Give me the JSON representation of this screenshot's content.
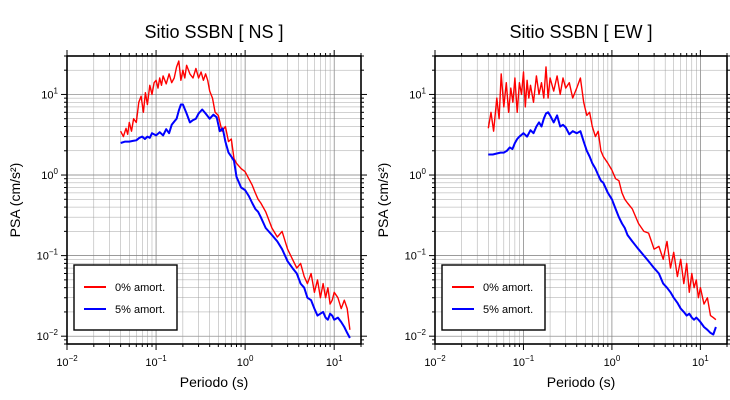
{
  "chart_data": [
    {
      "type": "line",
      "title": "Sitio SSBN [ NS ]",
      "xlabel": "Periodo (s)",
      "ylabel": "PSA (cm/s²)",
      "xscale": "log",
      "yscale": "log",
      "xlim": [
        0.01,
        20
      ],
      "ylim": [
        0.008,
        30
      ],
      "grid": true,
      "legend_position": "bottom-left",
      "xticks": [
        {
          "value": 0.01,
          "base": "10",
          "exp": "−2"
        },
        {
          "value": 0.1,
          "base": "10",
          "exp": "−1"
        },
        {
          "value": 1,
          "base": "10",
          "exp": "0"
        },
        {
          "value": 10,
          "base": "10",
          "exp": "1"
        }
      ],
      "yticks": [
        {
          "value": 0.01,
          "base": "10",
          "exp": "−2"
        },
        {
          "value": 0.1,
          "base": "10",
          "exp": "−1"
        },
        {
          "value": 1,
          "base": "10",
          "exp": "0"
        },
        {
          "value": 10,
          "base": "10",
          "exp": "1"
        }
      ],
      "series": [
        {
          "name": "0% amort.",
          "color": "#ff0000",
          "x": [
            0.04,
            0.043,
            0.046,
            0.048,
            0.05,
            0.053,
            0.056,
            0.06,
            0.064,
            0.068,
            0.072,
            0.076,
            0.08,
            0.085,
            0.09,
            0.095,
            0.1,
            0.105,
            0.11,
            0.115,
            0.12,
            0.13,
            0.14,
            0.15,
            0.16,
            0.17,
            0.18,
            0.19,
            0.2,
            0.21,
            0.22,
            0.24,
            0.26,
            0.28,
            0.3,
            0.32,
            0.34,
            0.36,
            0.38,
            0.4,
            0.43,
            0.46,
            0.5,
            0.55,
            0.6,
            0.65,
            0.7,
            0.75,
            0.8,
            0.9,
            1.0,
            1.1,
            1.2,
            1.3,
            1.4,
            1.5,
            1.7,
            2.0,
            2.3,
            2.6,
            3.0,
            3.4,
            3.8,
            4.2,
            4.6,
            5.0,
            5.5,
            6.0,
            6.5,
            7.0,
            7.5,
            8.0,
            8.5,
            9.0,
            9.5,
            10,
            11,
            12,
            13,
            14,
            15
          ],
          "y": [
            3.5,
            3.0,
            3.8,
            3.2,
            4.5,
            3.5,
            5.0,
            4.5,
            8.0,
            9.5,
            6.0,
            10.5,
            7.5,
            13.0,
            10.0,
            14.0,
            15.0,
            12.0,
            16.0,
            13.0,
            17.0,
            13.5,
            18.0,
            14.0,
            16.0,
            22.0,
            26.0,
            15.0,
            20.0,
            16.0,
            23.0,
            18.0,
            16.0,
            21.0,
            16.0,
            19.0,
            15.0,
            18.0,
            15.0,
            11.0,
            9.0,
            6.0,
            5.5,
            3.5,
            4.0,
            2.6,
            2.8,
            1.6,
            1.4,
            1.2,
            1.1,
            0.9,
            0.75,
            0.6,
            0.5,
            0.45,
            0.35,
            0.22,
            0.17,
            0.2,
            0.12,
            0.09,
            0.07,
            0.08,
            0.055,
            0.045,
            0.06,
            0.035,
            0.05,
            0.03,
            0.045,
            0.03,
            0.04,
            0.025,
            0.028,
            0.035,
            0.03,
            0.022,
            0.028,
            0.022,
            0.012
          ]
        },
        {
          "name": "5% amort.",
          "color": "#0000ff",
          "x": [
            0.04,
            0.045,
            0.05,
            0.055,
            0.06,
            0.065,
            0.07,
            0.075,
            0.08,
            0.085,
            0.09,
            0.1,
            0.11,
            0.12,
            0.13,
            0.14,
            0.15,
            0.16,
            0.17,
            0.18,
            0.19,
            0.2,
            0.22,
            0.24,
            0.26,
            0.28,
            0.3,
            0.33,
            0.36,
            0.4,
            0.44,
            0.48,
            0.52,
            0.56,
            0.6,
            0.65,
            0.7,
            0.75,
            0.8,
            0.9,
            1.0,
            1.1,
            1.2,
            1.3,
            1.4,
            1.5,
            1.7,
            2.0,
            2.3,
            2.6,
            3.0,
            3.4,
            3.8,
            4.2,
            4.6,
            5.0,
            5.5,
            6.0,
            6.5,
            7.0,
            7.5,
            8.0,
            8.5,
            9.0,
            9.5,
            10,
            11,
            12,
            13,
            14,
            15
          ],
          "y": [
            2.5,
            2.6,
            2.6,
            2.65,
            2.7,
            2.9,
            3.0,
            2.8,
            3.0,
            2.9,
            3.3,
            3.1,
            3.4,
            3.1,
            3.7,
            3.3,
            4.2,
            4.6,
            5.0,
            6.3,
            7.5,
            7.5,
            5.8,
            4.5,
            4.8,
            5.0,
            5.8,
            6.5,
            5.8,
            5.0,
            5.6,
            5.2,
            3.5,
            3.8,
            2.6,
            1.9,
            1.7,
            1.5,
            0.95,
            0.7,
            0.65,
            0.55,
            0.45,
            0.38,
            0.35,
            0.3,
            0.22,
            0.18,
            0.15,
            0.12,
            0.085,
            0.07,
            0.06,
            0.045,
            0.04,
            0.03,
            0.028,
            0.022,
            0.018,
            0.019,
            0.02,
            0.017,
            0.016,
            0.019,
            0.018,
            0.016,
            0.017,
            0.015,
            0.013,
            0.011,
            0.0095
          ]
        }
      ],
      "legend": [
        {
          "label": "0% amort.",
          "color": "#ff0000"
        },
        {
          "label": "5% amort.",
          "color": "#0000ff"
        }
      ]
    },
    {
      "type": "line",
      "title": "Sitio SSBN [ EW ]",
      "xlabel": "Periodo (s)",
      "ylabel": "PSA (cm/s²)",
      "xscale": "log",
      "yscale": "log",
      "xlim": [
        0.01,
        20
      ],
      "ylim": [
        0.008,
        30
      ],
      "grid": true,
      "legend_position": "bottom-left",
      "xticks": [
        {
          "value": 0.01,
          "base": "10",
          "exp": "−2"
        },
        {
          "value": 0.1,
          "base": "10",
          "exp": "−1"
        },
        {
          "value": 1,
          "base": "10",
          "exp": "0"
        },
        {
          "value": 10,
          "base": "10",
          "exp": "1"
        }
      ],
      "yticks": [
        {
          "value": 0.01,
          "base": "10",
          "exp": "−2"
        },
        {
          "value": 0.1,
          "base": "10",
          "exp": "−1"
        },
        {
          "value": 1,
          "base": "10",
          "exp": "0"
        },
        {
          "value": 10,
          "base": "10",
          "exp": "1"
        }
      ],
      "series": [
        {
          "name": "0% amort.",
          "color": "#ff0000",
          "x": [
            0.04,
            0.043,
            0.046,
            0.05,
            0.053,
            0.056,
            0.06,
            0.064,
            0.068,
            0.072,
            0.076,
            0.08,
            0.085,
            0.09,
            0.095,
            0.1,
            0.105,
            0.11,
            0.115,
            0.12,
            0.13,
            0.14,
            0.15,
            0.16,
            0.17,
            0.18,
            0.19,
            0.2,
            0.22,
            0.24,
            0.26,
            0.28,
            0.3,
            0.33,
            0.36,
            0.4,
            0.44,
            0.48,
            0.52,
            0.56,
            0.6,
            0.65,
            0.7,
            0.75,
            0.8,
            0.9,
            1.0,
            1.1,
            1.2,
            1.3,
            1.4,
            1.5,
            1.7,
            2.0,
            2.3,
            2.6,
            3.0,
            3.4,
            3.8,
            4.2,
            4.6,
            5.0,
            5.5,
            6.0,
            6.5,
            7.0,
            7.5,
            8.0,
            8.5,
            9.0,
            9.5,
            10,
            11,
            12,
            13,
            14,
            15
          ],
          "y": [
            3.8,
            6.0,
            3.5,
            9.0,
            5.0,
            18.0,
            7.0,
            14.0,
            6.0,
            12.0,
            8.0,
            16.0,
            6.0,
            14.0,
            10.0,
            19.0,
            7.0,
            15.0,
            9.0,
            13.0,
            8.0,
            17.0,
            10.0,
            14.0,
            9.0,
            22.0,
            9.0,
            16.0,
            11.0,
            17.0,
            10.0,
            16.0,
            12.0,
            14.0,
            9.0,
            12.0,
            16.0,
            8.0,
            5.5,
            6.0,
            4.0,
            3.0,
            3.5,
            2.0,
            1.7,
            1.4,
            1.15,
            0.9,
            0.85,
            0.6,
            0.5,
            0.45,
            0.38,
            0.25,
            0.2,
            0.19,
            0.12,
            0.13,
            0.09,
            0.15,
            0.07,
            0.11,
            0.055,
            0.09,
            0.045,
            0.08,
            0.035,
            0.06,
            0.04,
            0.05,
            0.03,
            0.04,
            0.025,
            0.03,
            0.018,
            0.017,
            0.016
          ]
        },
        {
          "name": "5% amort.",
          "color": "#0000ff",
          "x": [
            0.04,
            0.045,
            0.05,
            0.055,
            0.06,
            0.065,
            0.07,
            0.075,
            0.08,
            0.085,
            0.09,
            0.1,
            0.11,
            0.12,
            0.13,
            0.14,
            0.15,
            0.16,
            0.17,
            0.18,
            0.19,
            0.2,
            0.22,
            0.24,
            0.26,
            0.28,
            0.3,
            0.33,
            0.36,
            0.4,
            0.44,
            0.48,
            0.52,
            0.56,
            0.6,
            0.65,
            0.7,
            0.75,
            0.8,
            0.9,
            1.0,
            1.1,
            1.2,
            1.3,
            1.4,
            1.5,
            1.7,
            2.0,
            2.3,
            2.6,
            3.0,
            3.4,
            3.8,
            4.2,
            4.6,
            5.0,
            5.5,
            6.0,
            6.5,
            7.0,
            7.5,
            8.0,
            8.5,
            9.0,
            9.5,
            10,
            11,
            12,
            13,
            14,
            15
          ],
          "y": [
            1.8,
            1.8,
            1.85,
            1.9,
            1.9,
            2.0,
            2.2,
            2.1,
            2.5,
            2.8,
            3.0,
            3.3,
            3.0,
            3.6,
            3.3,
            4.0,
            4.5,
            4.0,
            5.0,
            5.8,
            6.0,
            5.5,
            4.5,
            5.5,
            4.0,
            4.2,
            3.9,
            3.2,
            3.5,
            3.3,
            3.5,
            2.6,
            2.0,
            1.7,
            1.4,
            1.2,
            1.0,
            0.85,
            0.8,
            0.6,
            0.5,
            0.38,
            0.3,
            0.25,
            0.22,
            0.18,
            0.15,
            0.12,
            0.1,
            0.085,
            0.07,
            0.06,
            0.045,
            0.04,
            0.035,
            0.03,
            0.026,
            0.022,
            0.02,
            0.018,
            0.019,
            0.017,
            0.016,
            0.017,
            0.016,
            0.015,
            0.013,
            0.012,
            0.011,
            0.0105,
            0.013
          ]
        }
      ],
      "legend": [
        {
          "label": "0% amort.",
          "color": "#ff0000"
        },
        {
          "label": "5% amort.",
          "color": "#0000ff"
        }
      ]
    }
  ]
}
